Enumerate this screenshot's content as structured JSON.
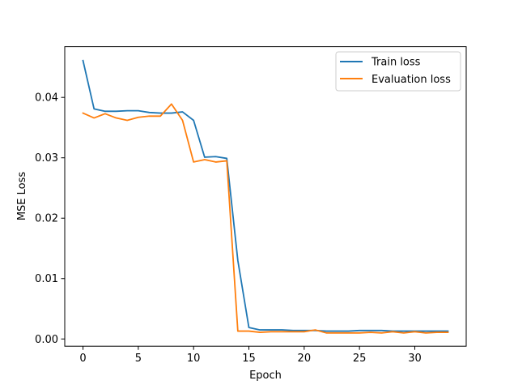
{
  "chart_data": {
    "type": "line",
    "title": "",
    "xlabel": "Epoch",
    "ylabel": "MSE Loss",
    "xlim": [
      -1.65,
      34.65
    ],
    "ylim": [
      -0.0012,
      0.0484
    ],
    "xticks": [
      0,
      5,
      10,
      15,
      20,
      25,
      30
    ],
    "yticks": [
      0.0,
      0.01,
      0.02,
      0.03,
      0.04
    ],
    "xtick_labels": [
      "0",
      "5",
      "10",
      "15",
      "20",
      "25",
      "30"
    ],
    "ytick_labels": [
      "0.00",
      "0.01",
      "0.02",
      "0.03",
      "0.04"
    ],
    "grid": false,
    "legend_position": "upper right",
    "x": [
      0,
      1,
      2,
      3,
      4,
      5,
      6,
      7,
      8,
      9,
      10,
      11,
      12,
      13,
      14,
      15,
      16,
      17,
      18,
      19,
      20,
      21,
      22,
      23,
      24,
      25,
      26,
      27,
      28,
      29,
      30,
      31,
      32,
      33
    ],
    "series": [
      {
        "name": "Train loss",
        "color": "#1f77b4",
        "values": [
          0.0461,
          0.0381,
          0.0377,
          0.0377,
          0.0378,
          0.0378,
          0.0375,
          0.0374,
          0.0374,
          0.0376,
          0.0362,
          0.0301,
          0.0302,
          0.0299,
          0.013,
          0.0019,
          0.0015,
          0.0015,
          0.0015,
          0.0014,
          0.0014,
          0.0014,
          0.0013,
          0.0013,
          0.0013,
          0.0014,
          0.0014,
          0.0014,
          0.0013,
          0.0013,
          0.0013,
          0.0013,
          0.0013,
          0.0013
        ]
      },
      {
        "name": "Evaluation loss",
        "color": "#ff7f0e",
        "values": [
          0.0374,
          0.0366,
          0.0373,
          0.0366,
          0.0362,
          0.0367,
          0.0369,
          0.0369,
          0.0389,
          0.0362,
          0.0293,
          0.0297,
          0.0293,
          0.0295,
          0.0013,
          0.0013,
          0.0011,
          0.0012,
          0.0012,
          0.0012,
          0.0012,
          0.0015,
          0.001,
          0.001,
          0.001,
          0.001,
          0.0011,
          0.001,
          0.0012,
          0.001,
          0.0012,
          0.001,
          0.0011,
          0.0011
        ]
      }
    ]
  }
}
